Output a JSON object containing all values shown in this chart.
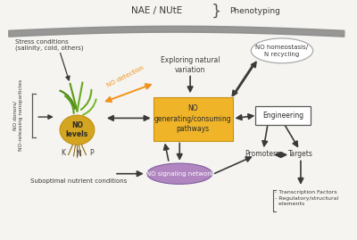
{
  "bg_color": "#f5f4f0",
  "title_text": "NAE / NUtE",
  "phenotyping_text": "Phenotyping",
  "stress_text": "Stress conditions\n(salinity, cold, others)",
  "no_donors_text": "NO donors/\nNO-releasing nanoparticles",
  "suboptimal_text": "Suboptimal nutrient conditions",
  "no_levels_text": "NO\nlevels",
  "k_text": "K",
  "n_text": "N",
  "p_text": "P",
  "no_detection_text": "NO detection",
  "exploring_text": "Exploring natural\nvariation",
  "no_gen_text": "NO\ngenerating/consuming\npathways",
  "no_gen_color": "#f0b429",
  "no_homeostasis_text": "NO homeostasis/\nN recycling",
  "engineering_text": "Engineering",
  "no_signaling_text": "NO signaling network",
  "no_signaling_color": "#b085c0",
  "promoters_text": "Promoters",
  "targets_text": "Targets",
  "bullet_text": "- Transcription Factors\n- Regulatory/structural\n  elements",
  "arrow_color": "#3a3a3a",
  "orange_arrow_color": "#f0921e"
}
